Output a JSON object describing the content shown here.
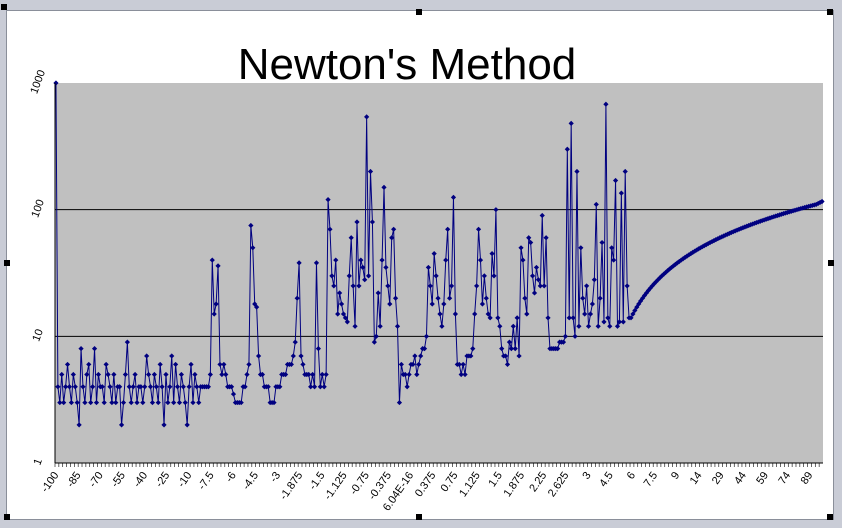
{
  "chart_data": {
    "type": "line",
    "title": "Newton's Method",
    "xlabel": "",
    "ylabel": "",
    "y_scale": "log",
    "ylim": [
      1,
      1000
    ],
    "y_ticks": [
      "1",
      "10",
      "100",
      "1000"
    ],
    "x_tick_labels": [
      "-100",
      "-85",
      "-70",
      "-55",
      "-40",
      "-25",
      "-10",
      "-7.5",
      "-6",
      "-4.5",
      "-3",
      "-1.875",
      "-1.5",
      "-1.125",
      "-0.75",
      "-0.375",
      "6.04E-16",
      "0.375",
      "0.75",
      "1.125",
      "1.5",
      "1.875",
      "2.25",
      "2.625",
      "3",
      "4.5",
      "6",
      "7.5",
      "9",
      "14",
      "29",
      "44",
      "59",
      "74",
      "89"
    ],
    "grid": "horizontal major",
    "legend": "none",
    "colors": {
      "series": "#000080",
      "plot_bg": "#c0c0c0",
      "frame_bg": "#ffffff"
    },
    "series": [
      {
        "values": [
          1000,
          4,
          3,
          5,
          3,
          4,
          6,
          4,
          3,
          5,
          4,
          3,
          2,
          8,
          4,
          3,
          5,
          6,
          3,
          4,
          8,
          3,
          5,
          4,
          4,
          3,
          6,
          5,
          4,
          3,
          5,
          3,
          4,
          4,
          2,
          3,
          5,
          9,
          4,
          3,
          4,
          5,
          3,
          4,
          4,
          3,
          4,
          7,
          5,
          4,
          3,
          5,
          4,
          3,
          6,
          4,
          2,
          5,
          3,
          4,
          7,
          3,
          6,
          4,
          3,
          5,
          4,
          3,
          2,
          4,
          6,
          3,
          5,
          4,
          3,
          4,
          4,
          4,
          4,
          4,
          5,
          40,
          15,
          18,
          36,
          6,
          5,
          6,
          5,
          4,
          4,
          4,
          3.5,
          3,
          3,
          3,
          3,
          4,
          4,
          5,
          6,
          75,
          50,
          18,
          17,
          7,
          5,
          5,
          4,
          4,
          4,
          3,
          3,
          3,
          4,
          4,
          4,
          5,
          5,
          5,
          6,
          6,
          6,
          7,
          9,
          20,
          38,
          7,
          6,
          5,
          5,
          5,
          4,
          5,
          4,
          38,
          8,
          4,
          5,
          4,
          5,
          120,
          70,
          30,
          25,
          40,
          15,
          22,
          18,
          15,
          14,
          13,
          30,
          60,
          25,
          12,
          80,
          25,
          40,
          35,
          28,
          540,
          30,
          200,
          80,
          9,
          10,
          22,
          12,
          40,
          150,
          35,
          25,
          18,
          60,
          70,
          20,
          12,
          3,
          6,
          5,
          5,
          4,
          5,
          6,
          6,
          7,
          5,
          6,
          7,
          8,
          8,
          10,
          35,
          25,
          18,
          45,
          30,
          20,
          15,
          12,
          18,
          40,
          70,
          20,
          25,
          125,
          15,
          6,
          6,
          5,
          6,
          5,
          7,
          7,
          7,
          8,
          15,
          25,
          70,
          40,
          18,
          30,
          20,
          15,
          14,
          45,
          30,
          100,
          14,
          12,
          8,
          7,
          7,
          6,
          9,
          8,
          12,
          8,
          14,
          7,
          50,
          40,
          20,
          15,
          60,
          55,
          30,
          22,
          35,
          28,
          25,
          90,
          25,
          60,
          14,
          8,
          8,
          8,
          8,
          8,
          9,
          9,
          9,
          10,
          300,
          14,
          480,
          14,
          10,
          200,
          12,
          50,
          20,
          15,
          25,
          12,
          15,
          18,
          28,
          110,
          12,
          20,
          55,
          13,
          680,
          14,
          12,
          50,
          40,
          170,
          12,
          13,
          135,
          13,
          200,
          25,
          14,
          14,
          15,
          16,
          17,
          18,
          19,
          20,
          21,
          22,
          23,
          24,
          25,
          26,
          27,
          28,
          29,
          30,
          31,
          32,
          33,
          34,
          35,
          36,
          37,
          38,
          39,
          40,
          41,
          42,
          43,
          44,
          45,
          46,
          47,
          48,
          49,
          50,
          51,
          52,
          53,
          54,
          55,
          56,
          57,
          58,
          59,
          60,
          61,
          62,
          63,
          64,
          65,
          66,
          67,
          68,
          69,
          70,
          71,
          72,
          73,
          74,
          75,
          76,
          77,
          78,
          79,
          80,
          81,
          82,
          83,
          84,
          85,
          86,
          87,
          88,
          89,
          90,
          91,
          92,
          93,
          94,
          95,
          96,
          97,
          98,
          99,
          100,
          101,
          102,
          103,
          104,
          105,
          106,
          107,
          108,
          109,
          110,
          112,
          114,
          116
        ]
      }
    ]
  }
}
